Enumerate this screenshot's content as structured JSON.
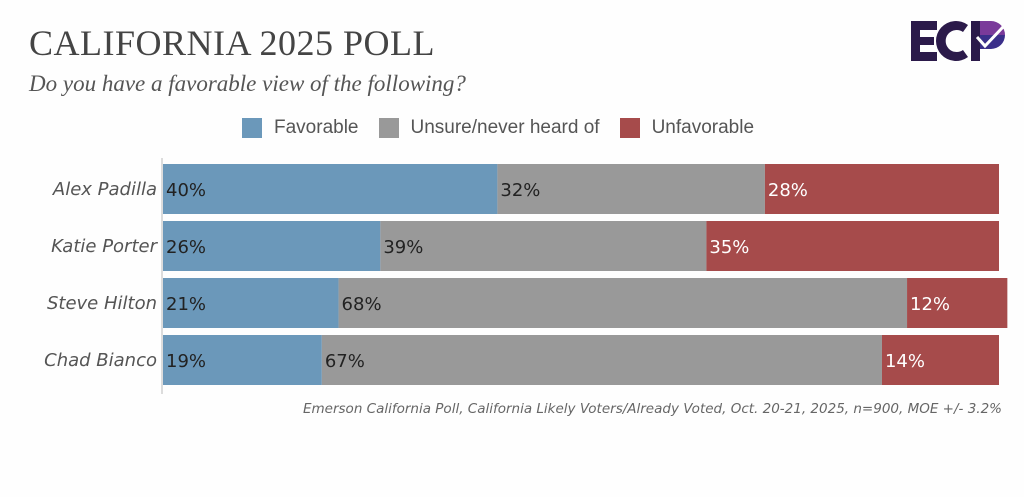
{
  "header": {
    "title": "CALIFORNIA 2025 POLL",
    "subtitle": "Do you have a favorable view of the following?",
    "logo_text": "ECP"
  },
  "source_note": "Emerson California Poll, California Likely Voters/Already Voted, Oct. 20-21, 2025, n=900, MOE +/- 3.2%",
  "colors": {
    "favorable": "#6b98ba",
    "unsure": "#999999",
    "unfavorable": "#a64b4b",
    "logo_dark": "#2b1a4a",
    "logo_purple": "#7a3a9a",
    "logo_blue": "#3a2f8a"
  },
  "chart_data": {
    "type": "bar",
    "orientation": "horizontal",
    "stacked": true,
    "title": "CALIFORNIA 2025 POLL",
    "subtitle": "Do you have a favorable view of the following?",
    "xlabel": "",
    "ylabel": "",
    "xlim": [
      0,
      100
    ],
    "grid": false,
    "legend_position": "top",
    "categories": [
      "Alex Padilla",
      "Katie Porter",
      "Steve Hilton",
      "Chad Bianco"
    ],
    "series": [
      {
        "name": "Favorable",
        "values": [
          40,
          26,
          21,
          19
        ],
        "labels": [
          "40%",
          "26%",
          "21%",
          "19%"
        ],
        "color": "#6b98ba",
        "label_color": "#222222"
      },
      {
        "name": "Unsure/never heard of",
        "values": [
          32,
          39,
          68,
          67
        ],
        "labels": [
          "32%",
          "39%",
          "68%",
          "67%"
        ],
        "color": "#999999",
        "label_color": "#222222"
      },
      {
        "name": "Unfavorable",
        "values": [
          28,
          35,
          12,
          14
        ],
        "labels": [
          "28%",
          "35%",
          "12%",
          "14%"
        ],
        "color": "#a64b4b",
        "label_color": "#ffffff"
      }
    ],
    "annotation": "Emerson California Poll, California Likely Voters/Already Voted, Oct. 20-21, 2025, n=900, MOE +/- 3.2%"
  }
}
